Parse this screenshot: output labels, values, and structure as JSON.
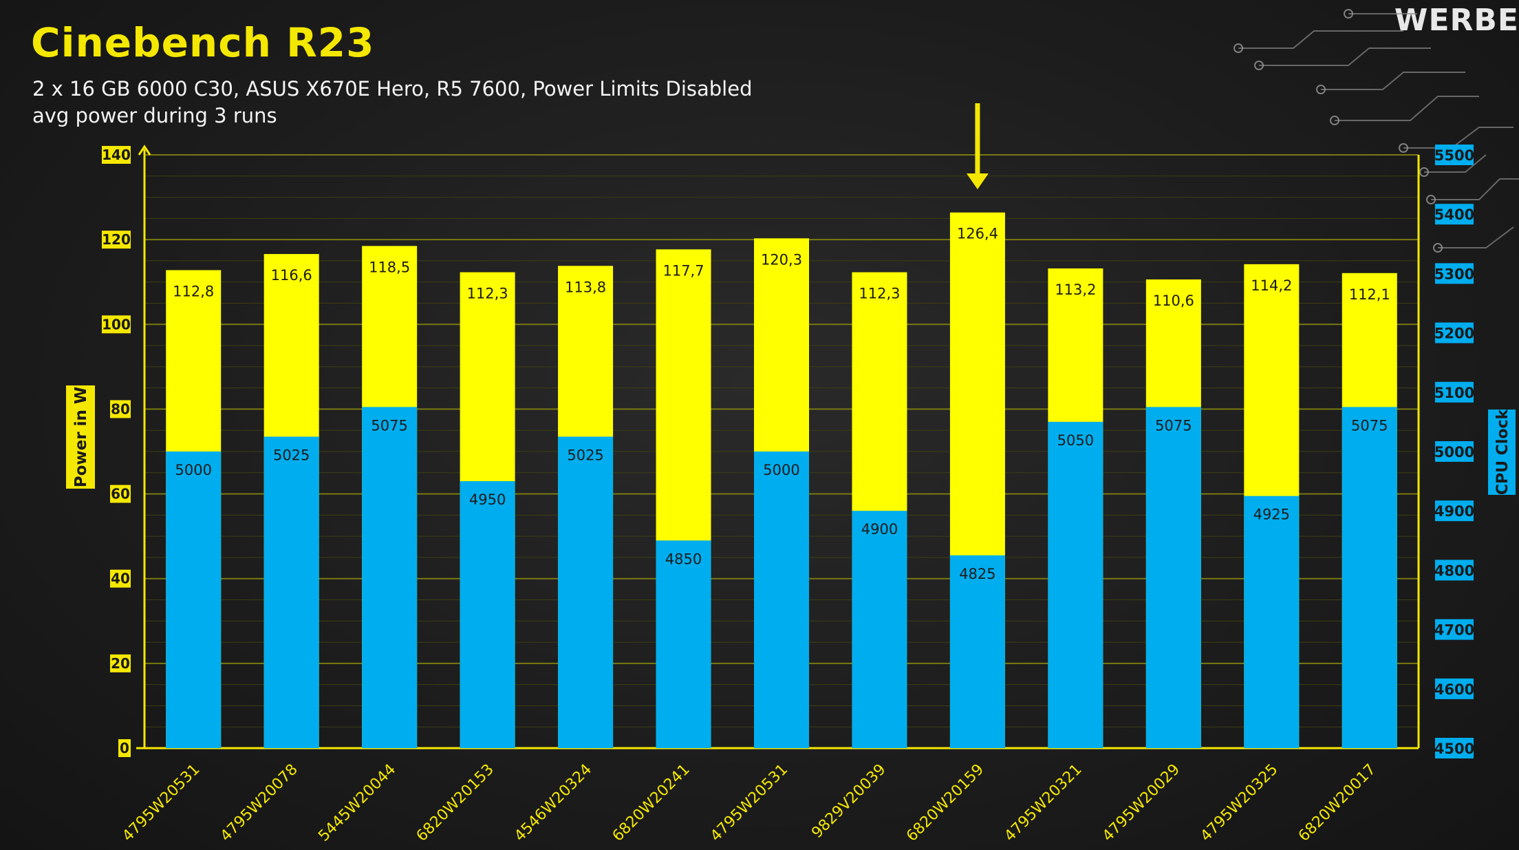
{
  "title": "Cinebench R23",
  "subtitle_line1": "2 x 16 GB 6000 C30, ASUS X670E Hero,  R5 7600, Power Limits Disabled",
  "subtitle_line2": "avg power during 3 runs",
  "brand": "WERBE",
  "colors": {
    "power": "#ffff00",
    "clock": "#00aeef",
    "axis_yellow": "#f5e800",
    "gridline": "#5a5a10"
  },
  "chart_data": {
    "type": "bar",
    "title": "Cinebench R23",
    "categories": [
      "4795W20531",
      "4795W20078",
      "5445W20044",
      "6820W20153",
      "4546W20324",
      "6820W20241",
      "4795W20531",
      "9829V20039",
      "6820W20159",
      "4795W20321",
      "4795W20029",
      "4795W20325",
      "6820W20017"
    ],
    "series": [
      {
        "name": "Power in W",
        "axis": "left",
        "values": [
          112.8,
          116.6,
          118.5,
          112.3,
          113.8,
          117.7,
          120.3,
          112.3,
          126.4,
          113.2,
          110.6,
          114.2,
          112.1
        ],
        "labels": [
          "112,8",
          "116,6",
          "118,5",
          "112,3",
          "113,8",
          "117,7",
          "120,3",
          "112,3",
          "126,4",
          "113,2",
          "110,6",
          "114,2",
          "112,1"
        ]
      },
      {
        "name": "CPU Clock",
        "axis": "right",
        "values": [
          5000,
          5025,
          5075,
          4950,
          5025,
          4850,
          5000,
          4900,
          4825,
          5050,
          5075,
          4925,
          5075
        ],
        "labels": [
          "5000",
          "5025",
          "5075",
          "4950",
          "5025",
          "4850",
          "5000",
          "4900",
          "4825",
          "5050",
          "5075",
          "4925",
          "5075"
        ]
      }
    ],
    "ylabel": "Power in W",
    "y2label": "CPU Clock",
    "ylim": [
      0,
      140
    ],
    "y2lim": [
      4500,
      5500
    ],
    "yticks": [
      "0",
      "20",
      "40",
      "60",
      "80",
      "100",
      "120",
      "140"
    ],
    "y2ticks": [
      "4500",
      "4600",
      "4700",
      "4800",
      "4900",
      "5000",
      "5100",
      "5200",
      "5300",
      "5400",
      "5500"
    ],
    "highlight_category_index": 8,
    "grid": true
  }
}
